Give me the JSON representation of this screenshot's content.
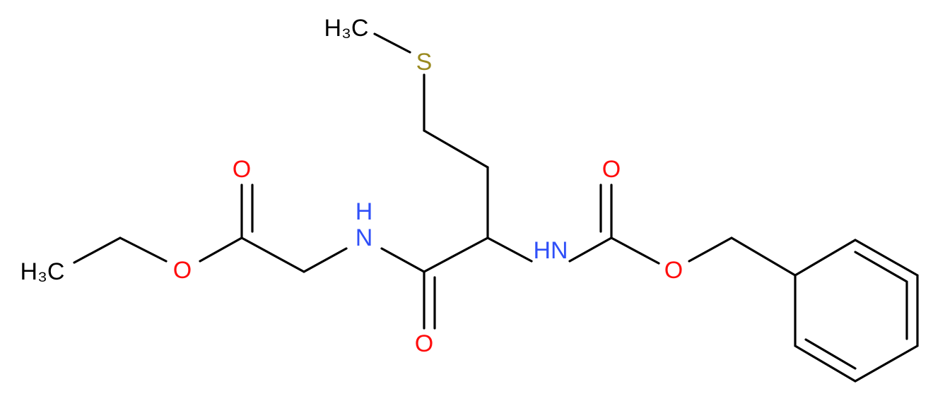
{
  "atoms": [
    {
      "label": "H₃C"
    },
    {
      "label": "S"
    },
    {
      "label": "O"
    },
    {
      "label": "H"
    },
    {
      "label": "N"
    },
    {
      "label": "HN"
    },
    {
      "label": "O"
    },
    {
      "label": "O"
    },
    {
      "label": "H₃C"
    },
    {
      "label": "O"
    },
    {
      "label": "O"
    }
  ]
}
